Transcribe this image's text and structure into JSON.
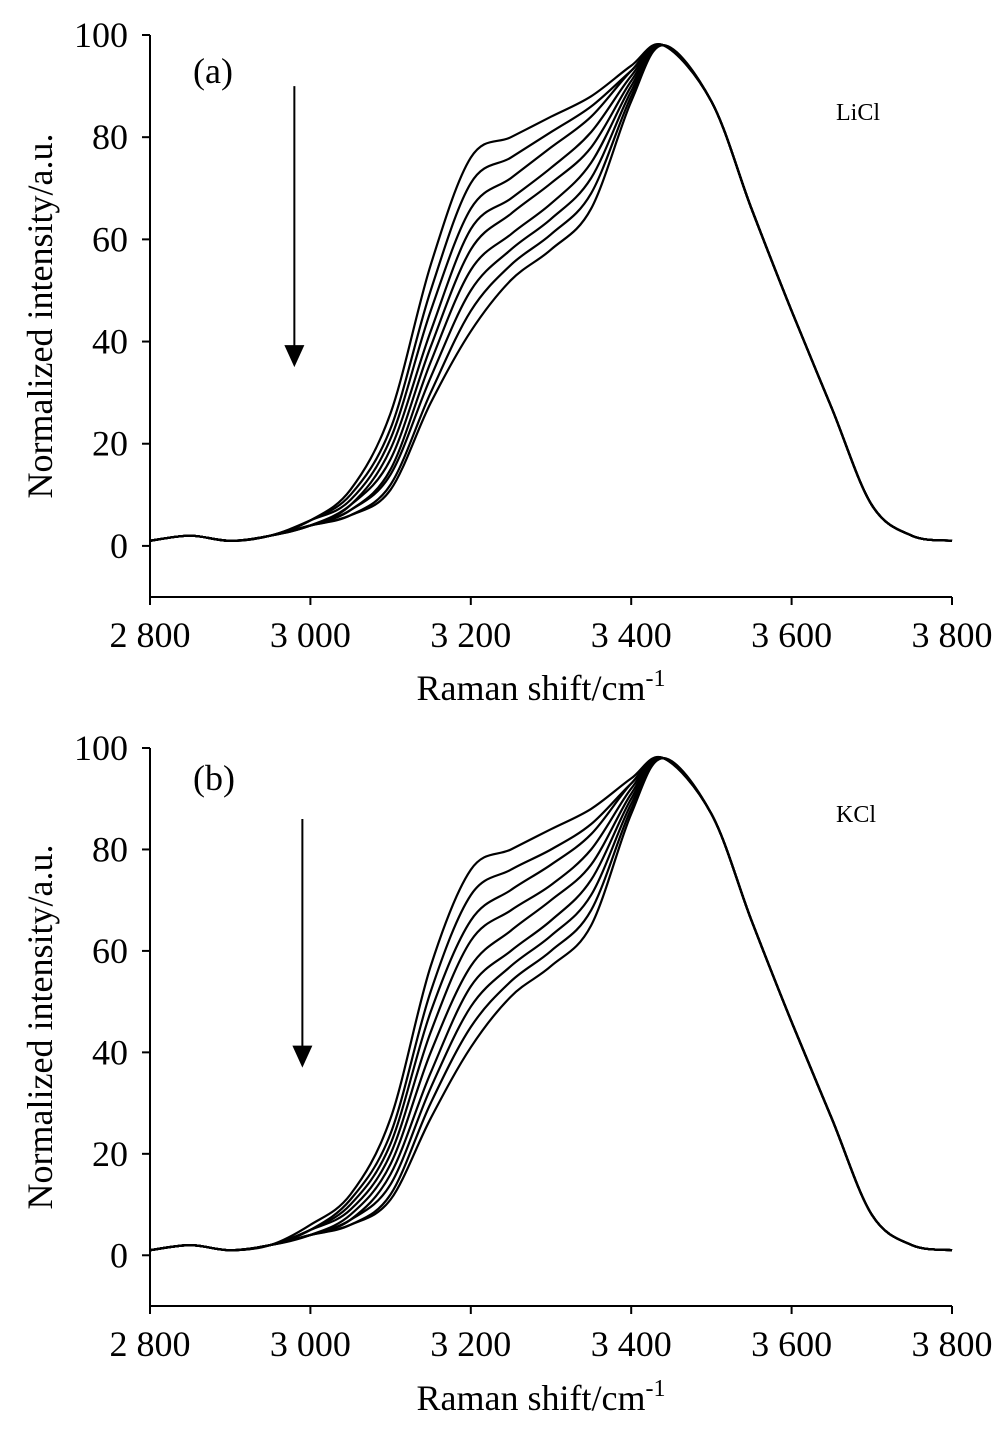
{
  "chart_data": [
    {
      "type": "line",
      "panel_label": "(a)",
      "annotation": "LiCl",
      "xlabel": "Raman shift/cm",
      "xlabel_sup": "-1",
      "ylabel": "Normalized intensity/a.u.",
      "xlim": [
        2800,
        3800
      ],
      "ylim": [
        -10,
        100
      ],
      "x_ticks": [
        {
          "value": 2800,
          "label": "2 800"
        },
        {
          "value": 3000,
          "label": "3 000"
        },
        {
          "value": 3200,
          "label": "3 200"
        },
        {
          "value": 3400,
          "label": "3 400"
        },
        {
          "value": 3600,
          "label": "3 600"
        },
        {
          "value": 3800,
          "label": "3 800"
        }
      ],
      "y_ticks": [
        {
          "value": 0,
          "label": "0"
        },
        {
          "value": 20,
          "label": "20"
        },
        {
          "value": 40,
          "label": "40"
        },
        {
          "value": 60,
          "label": "60"
        },
        {
          "value": 80,
          "label": "80"
        },
        {
          "value": 100,
          "label": "100"
        }
      ],
      "arrow": {
        "x": 2980,
        "y_start": 90,
        "y_end": 35,
        "direction": "down"
      },
      "x": [
        2800,
        2850,
        2900,
        2950,
        3000,
        3050,
        3100,
        3150,
        3200,
        3250,
        3300,
        3350,
        3400,
        3440,
        3500,
        3550,
        3600,
        3650,
        3700,
        3750,
        3800
      ],
      "series": [
        {
          "values": [
            1,
            2,
            1,
            2,
            5,
            11,
            26,
            55,
            76,
            80,
            84,
            88,
            94,
            98,
            87,
            66,
            46,
            27,
            8,
            2,
            1
          ]
        },
        {
          "values": [
            1,
            2,
            1,
            2,
            5,
            10,
            23,
            50,
            71,
            76,
            81,
            86,
            93,
            98,
            87,
            66,
            46,
            27,
            8,
            2,
            1
          ]
        },
        {
          "values": [
            1,
            2,
            1,
            2,
            5,
            9,
            21,
            46,
            66,
            72,
            78,
            84,
            93,
            98,
            87,
            66,
            46,
            27,
            8,
            2,
            1
          ]
        },
        {
          "values": [
            1,
            2,
            1,
            2,
            4,
            8,
            19,
            42,
            62,
            68,
            74,
            81,
            92,
            98,
            87,
            66,
            46,
            27,
            8,
            2,
            1
          ]
        },
        {
          "values": [
            1,
            2,
            1,
            2,
            4,
            8,
            17,
            39,
            58,
            65,
            71,
            78,
            91,
            98,
            87,
            66,
            46,
            27,
            8,
            2,
            1
          ]
        },
        {
          "values": [
            1,
            2,
            1,
            2,
            4,
            7,
            15,
            36,
            54,
            61,
            67,
            75,
            90,
            98,
            87,
            66,
            46,
            27,
            8,
            2,
            1
          ]
        },
        {
          "values": [
            1,
            2,
            1,
            2,
            4,
            7,
            14,
            33,
            50,
            58,
            64,
            72,
            89,
            98,
            87,
            66,
            46,
            27,
            8,
            2,
            1
          ]
        },
        {
          "values": [
            1,
            2,
            1,
            2,
            4,
            6,
            12,
            30,
            46,
            55,
            61,
            69,
            88,
            98,
            87,
            66,
            46,
            27,
            8,
            2,
            1
          ]
        },
        {
          "values": [
            1,
            2,
            1,
            2,
            4,
            6,
            11,
            28,
            42,
            52,
            58,
            66,
            87,
            98,
            87,
            66,
            46,
            27,
            8,
            2,
            1
          ]
        }
      ]
    },
    {
      "type": "line",
      "panel_label": "(b)",
      "annotation": "KCl",
      "xlabel": "Raman shift/cm",
      "xlabel_sup": "-1",
      "ylabel": "Normalized intensity/a.u.",
      "xlim": [
        2800,
        3800
      ],
      "ylim": [
        -10,
        100
      ],
      "x_ticks": [
        {
          "value": 2800,
          "label": "2 800"
        },
        {
          "value": 3000,
          "label": "3 000"
        },
        {
          "value": 3200,
          "label": "3 200"
        },
        {
          "value": 3400,
          "label": "3 400"
        },
        {
          "value": 3600,
          "label": "3 600"
        },
        {
          "value": 3800,
          "label": "3 800"
        }
      ],
      "y_ticks": [
        {
          "value": 0,
          "label": "0"
        },
        {
          "value": 20,
          "label": "20"
        },
        {
          "value": 40,
          "label": "40"
        },
        {
          "value": 60,
          "label": "60"
        },
        {
          "value": 80,
          "label": "80"
        },
        {
          "value": 100,
          "label": "100"
        }
      ],
      "arrow": {
        "x": 2990,
        "y_start": 86,
        "y_end": 37,
        "direction": "down"
      },
      "x": [
        2800,
        2850,
        2900,
        2950,
        3000,
        3050,
        3100,
        3150,
        3200,
        3250,
        3300,
        3350,
        3400,
        3440,
        3500,
        3550,
        3600,
        3650,
        3700,
        3750,
        3800
      ],
      "series": [
        {
          "values": [
            1,
            2,
            1,
            2,
            6,
            12,
            27,
            57,
            76,
            80,
            84,
            88,
            94,
            98,
            87,
            66,
            46,
            27,
            8,
            2,
            1
          ]
        },
        {
          "values": [
            1,
            2,
            1,
            2,
            5,
            11,
            24,
            52,
            71,
            76,
            80,
            85,
            93,
            98,
            87,
            66,
            46,
            27,
            8,
            2,
            1
          ]
        },
        {
          "values": [
            1,
            2,
            1,
            2,
            5,
            10,
            22,
            48,
            66,
            72,
            77,
            83,
            93,
            98,
            87,
            66,
            46,
            27,
            8,
            2,
            1
          ]
        },
        {
          "values": [
            1,
            2,
            1,
            2,
            5,
            9,
            20,
            44,
            62,
            68,
            73,
            80,
            92,
            98,
            87,
            66,
            46,
            27,
            8,
            2,
            1
          ]
        },
        {
          "values": [
            1,
            2,
            1,
            2,
            4,
            8,
            18,
            40,
            57,
            64,
            70,
            77,
            91,
            98,
            87,
            66,
            46,
            27,
            8,
            2,
            1
          ]
        },
        {
          "values": [
            1,
            2,
            1,
            2,
            4,
            7,
            16,
            36,
            53,
            60,
            66,
            74,
            90,
            98,
            87,
            66,
            46,
            27,
            8,
            2,
            1
          ]
        },
        {
          "values": [
            1,
            2,
            1,
            2,
            4,
            7,
            14,
            33,
            49,
            57,
            63,
            71,
            89,
            98,
            87,
            66,
            46,
            27,
            8,
            2,
            1
          ]
        },
        {
          "values": [
            1,
            2,
            1,
            2,
            4,
            6,
            12,
            30,
            45,
            54,
            60,
            68,
            88,
            98,
            87,
            66,
            46,
            27,
            8,
            2,
            1
          ]
        },
        {
          "values": [
            1,
            2,
            1,
            2,
            4,
            6,
            11,
            27,
            41,
            51,
            57,
            65,
            87,
            98,
            87,
            66,
            46,
            27,
            8,
            2,
            1
          ]
        }
      ]
    }
  ]
}
